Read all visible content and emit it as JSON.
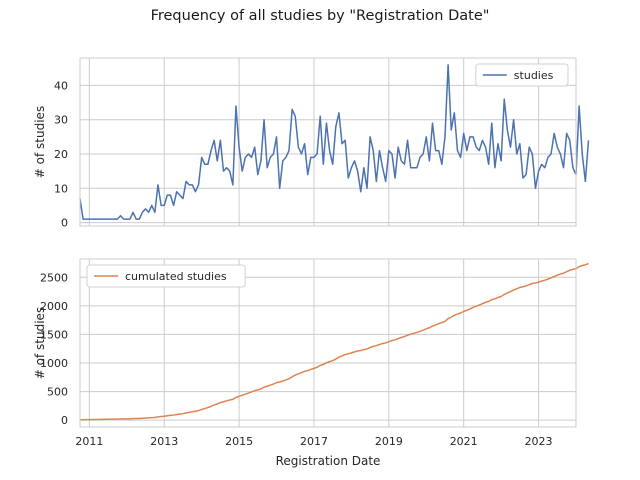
{
  "title": "Frequency of all studies by \"Registration Date\"",
  "xlabel": "Registration Date",
  "colors": {
    "studies": "#4c72b0",
    "cumulated": "#dd8452",
    "grid": "#cccccc",
    "axis": "#cccccc"
  },
  "chart_data": [
    {
      "type": "line",
      "ylabel": "# of studies",
      "legend": {
        "position": "top-right",
        "entries": [
          "studies"
        ]
      },
      "grid": true,
      "xlim": [
        "2010-10-01",
        "2024-01-01"
      ],
      "ylim": [
        -1,
        48
      ],
      "yticks": [
        0,
        10,
        20,
        30,
        40
      ],
      "xticks": [
        "2011",
        "2013",
        "2015",
        "2017",
        "2019",
        "2021",
        "2023"
      ],
      "show_xtick_labels": false,
      "series": [
        {
          "name": "studies",
          "start": "2010-10",
          "step": "month",
          "values": [
            7,
            1,
            1,
            1,
            1,
            1,
            1,
            1,
            1,
            1,
            1,
            1,
            1,
            2,
            1,
            1,
            1,
            3,
            1,
            1,
            3,
            4,
            3,
            5,
            3,
            11,
            5,
            5,
            8,
            8,
            5,
            9,
            8,
            7,
            12,
            11,
            11,
            9,
            11,
            19,
            17,
            17,
            21,
            24,
            18,
            24,
            15,
            16,
            15,
            11,
            34,
            22,
            15,
            19,
            20,
            19,
            22,
            14,
            18,
            30,
            16,
            19,
            20,
            25,
            10,
            18,
            19,
            21,
            33,
            31,
            22,
            20,
            23,
            14,
            19,
            19,
            20,
            31,
            17,
            29,
            21,
            17,
            28,
            32,
            23,
            24,
            13,
            16,
            18,
            15,
            9,
            16,
            10,
            25,
            21,
            12,
            21,
            16,
            12,
            21,
            20,
            13,
            22,
            18,
            17,
            24,
            16,
            16,
            16,
            19,
            20,
            25,
            18,
            29,
            21,
            21,
            17,
            25,
            46,
            27,
            32,
            21,
            19,
            26,
            21,
            25,
            25,
            22,
            21,
            24,
            22,
            17,
            29,
            16,
            23,
            18,
            36,
            27,
            22,
            30,
            20,
            23,
            13,
            14,
            22,
            20,
            10,
            15,
            17,
            16,
            19,
            20,
            26,
            22,
            20,
            16,
            26,
            24,
            16,
            14,
            34,
            20,
            12,
            24
          ]
        }
      ]
    },
    {
      "type": "line",
      "ylabel": "# of studies",
      "legend": {
        "position": "top-left",
        "entries": [
          "cumulated studies"
        ]
      },
      "grid": true,
      "xlim": [
        "2010-10-01",
        "2024-01-01"
      ],
      "ylim": [
        -120,
        2820
      ],
      "yticks": [
        0,
        500,
        1000,
        1500,
        2000,
        2500
      ],
      "xticks": [
        "2011",
        "2013",
        "2015",
        "2017",
        "2019",
        "2021",
        "2023"
      ],
      "series": [
        {
          "name": "cumulated studies",
          "derived_from": "studies",
          "method": "cumulative_sum"
        }
      ]
    }
  ]
}
